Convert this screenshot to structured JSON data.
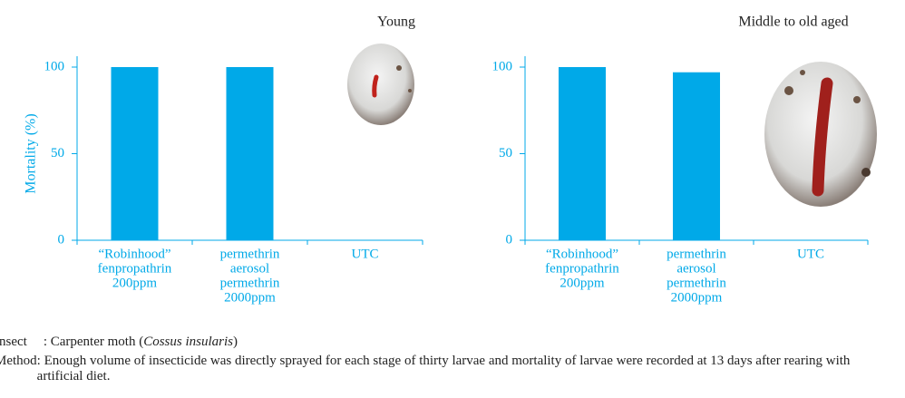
{
  "chart_data": [
    {
      "type": "bar",
      "title": "Young",
      "ylabel": "Mortality (%)",
      "categories": [
        [
          "“Robinhood”",
          "fenpropathrin",
          "200ppm"
        ],
        [
          "permethrin",
          "aerosol",
          "permethrin",
          "2000ppm"
        ],
        [
          "UTC"
        ]
      ],
      "values": [
        100,
        100,
        0
      ],
      "color": "#00a9e8",
      "ylim": [
        0,
        100
      ],
      "yticks": [
        0,
        50,
        100
      ]
    },
    {
      "type": "bar",
      "title": "Middle to old aged",
      "categories": [
        [
          "“Robinhood”",
          "fenpropathrin",
          "200ppm"
        ],
        [
          "permethrin",
          "aerosol",
          "permethrin",
          "2000ppm"
        ],
        [
          "UTC"
        ]
      ],
      "values": [
        100,
        97,
        0
      ],
      "color": "#00a9e8",
      "ylim": [
        0,
        100
      ],
      "yticks": [
        0,
        50,
        100
      ]
    }
  ],
  "notes": {
    "insect": {
      "label": "Insect",
      "text": ": Carpenter moth (",
      "species": "Cossus insularis",
      "end": ")"
    },
    "method": {
      "label": "Method",
      "text": ": Enough volume of insecticide was directly sprayed for each stage of thirty larvae and mortality of larvae were recorded at 13 days after rearing with artificial diet."
    }
  }
}
